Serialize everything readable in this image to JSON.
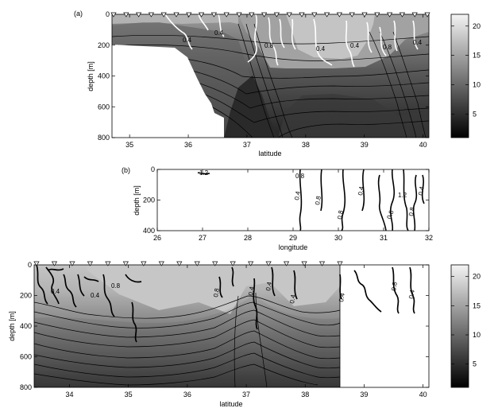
{
  "chart_data": [
    {
      "type": "heatmap",
      "panel_label": "(a)",
      "xlabel": "latitude",
      "ylabel": "depth [m]",
      "xlim": [
        34.7,
        40.1
      ],
      "ylim": [
        800,
        0
      ],
      "xticks": [
        35,
        36,
        37,
        38,
        39,
        40
      ],
      "yticks": [
        0,
        200,
        400,
        600,
        800
      ],
      "colorbar": {
        "range": [
          1,
          22
        ],
        "ticks": [
          5,
          10,
          15,
          20
        ]
      },
      "contour_labels": [
        "0.4",
        "0.4",
        "0.8",
        "0.4",
        "0.4",
        "0.8",
        "0.4"
      ],
      "bottom_profile": [
        {
          "lat": 34.7,
          "depth": 190
        },
        {
          "lat": 35.3,
          "depth": 210
        },
        {
          "lat": 35.6,
          "depth": 240
        },
        {
          "lat": 35.9,
          "depth": 330
        },
        {
          "lat": 36.1,
          "depth": 470
        },
        {
          "lat": 36.3,
          "depth": 610
        },
        {
          "lat": 36.5,
          "depth": 700
        },
        {
          "lat": 36.6,
          "depth": 800
        }
      ]
    },
    {
      "type": "line",
      "panel_label": "(b)",
      "xlabel": "longitude",
      "ylabel": "depth [m]",
      "xlim": [
        26,
        32
      ],
      "ylim": [
        400,
        0
      ],
      "xticks": [
        26,
        27,
        28,
        29,
        30,
        31,
        32
      ],
      "yticks": [
        0,
        200,
        400
      ],
      "contour_labels": [
        "1.2",
        "0.4",
        "0.8",
        "0.8",
        "0.4",
        "0.8",
        "1.2",
        "0.8",
        "0.4",
        "0.8"
      ]
    },
    {
      "type": "heatmap",
      "panel_label": "",
      "xlabel": "latitude",
      "ylabel": "depth [m]",
      "xlim": [
        33.4,
        40.1
      ],
      "ylim": [
        800,
        0
      ],
      "xticks": [
        34,
        35,
        36,
        37,
        38,
        39,
        40
      ],
      "yticks": [
        0,
        200,
        400,
        600,
        800
      ],
      "colorbar": {
        "range": [
          1,
          22
        ],
        "ticks": [
          5,
          10,
          15,
          20
        ]
      },
      "data_extent_lat": [
        33.4,
        38.55
      ],
      "contour_labels": [
        "0.4",
        "0.4",
        "0.8",
        "0.8",
        "0.4",
        "0.4",
        "0.4",
        "0.4",
        "0.8",
        "0.4"
      ]
    }
  ]
}
